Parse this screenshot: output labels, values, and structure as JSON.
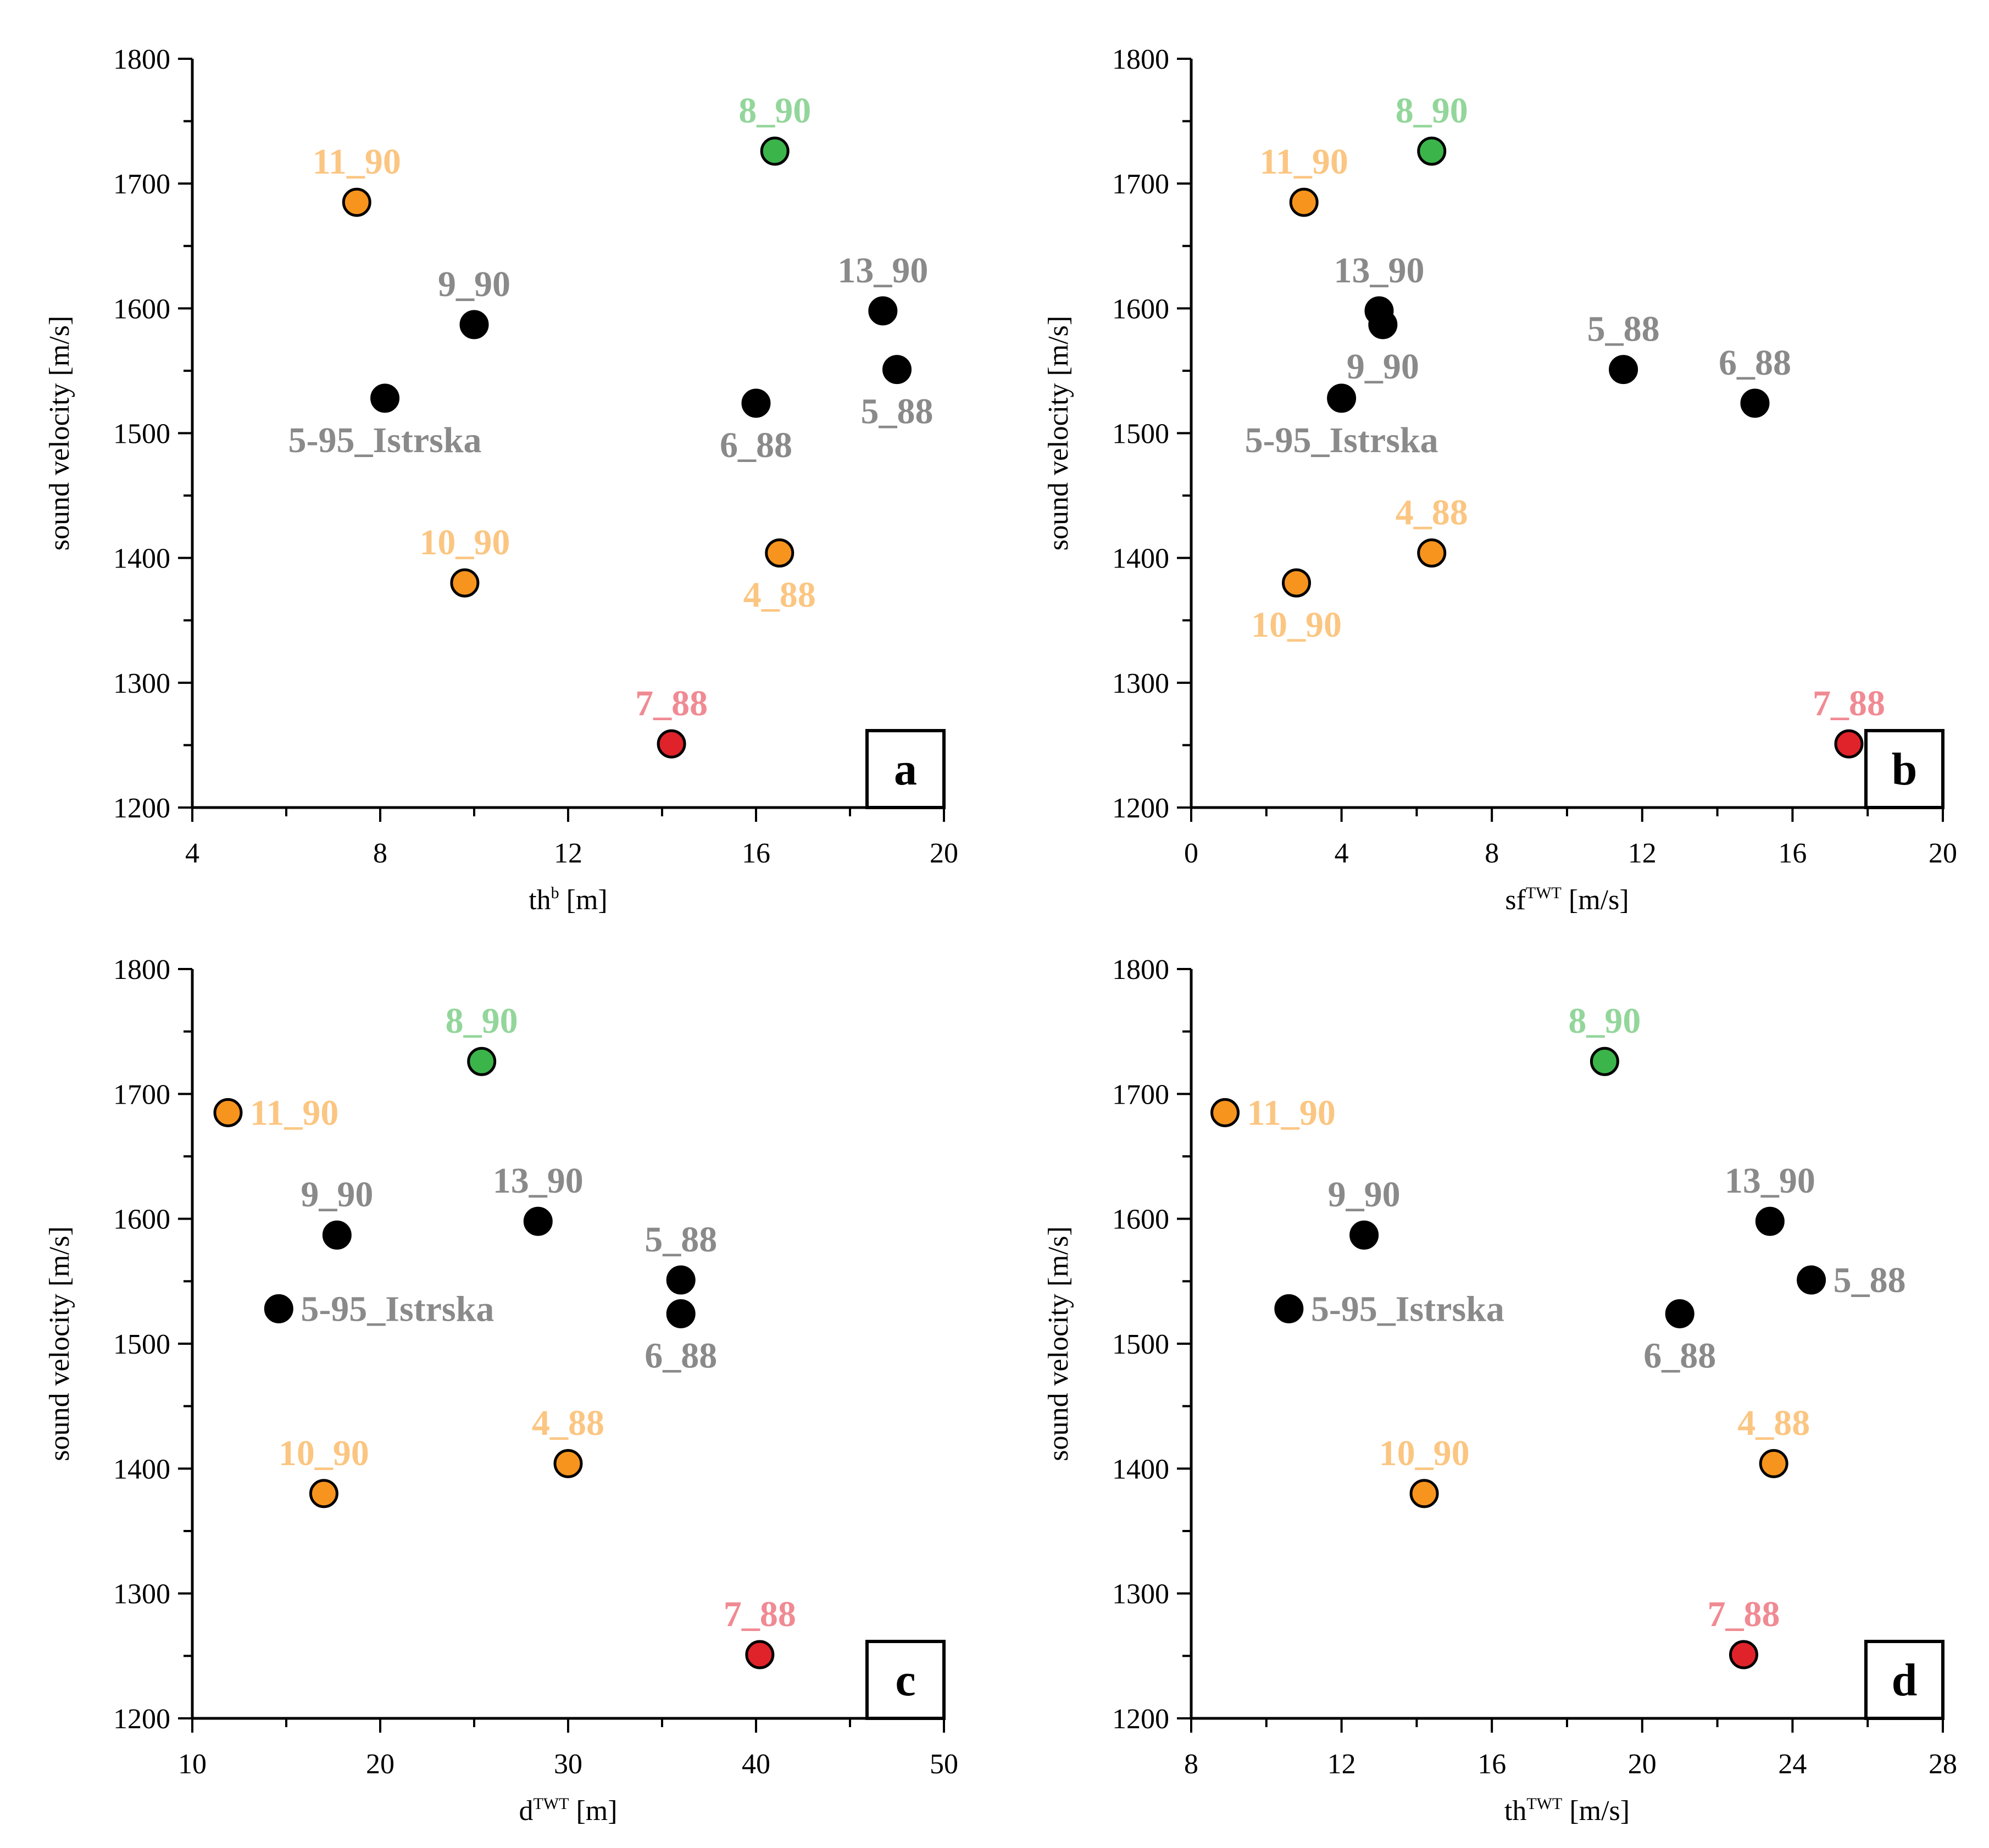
{
  "colors": {
    "black_marker": "#000000",
    "black_label": "#8a8a8a",
    "orange_marker": "#f7941d",
    "orange_label": "#fbc682",
    "green_marker": "#3bb54a",
    "green_label": "#93d69b",
    "red_marker": "#e0232a",
    "red_label": "#f08a93"
  },
  "chart_data": [
    {
      "type": "scatter",
      "panel": "a",
      "xlabel": "th",
      "xlabel_sup": "b",
      "xlabel_unit": " [m]",
      "ylabel": "sound velocity [m/s]",
      "xlim": [
        4,
        20
      ],
      "ylim": [
        1200,
        1800
      ],
      "xticks": [
        "4",
        "8",
        "12",
        "16",
        "20"
      ],
      "x_minor_step": 2,
      "yticks": [
        "1200",
        "1300",
        "1400",
        "1500",
        "1600",
        "1700",
        "1800"
      ],
      "y_minor_step": 50,
      "points": [
        {
          "label": "8_90",
          "x": 16.4,
          "y": 1726,
          "group": "green",
          "label_pos": "above"
        },
        {
          "label": "11_90",
          "x": 7.5,
          "y": 1685,
          "group": "orange",
          "label_pos": "above"
        },
        {
          "label": "9_90",
          "x": 10.0,
          "y": 1587,
          "group": "black",
          "label_pos": "above"
        },
        {
          "label": "13_90",
          "x": 18.7,
          "y": 1598,
          "group": "black",
          "label_pos": "above"
        },
        {
          "label": "5_88",
          "x": 19.0,
          "y": 1551,
          "group": "black",
          "label_pos": "below"
        },
        {
          "label": "5-95_Istrska",
          "x": 8.1,
          "y": 1528,
          "group": "black",
          "label_pos": "below"
        },
        {
          "label": "6_88",
          "x": 16.0,
          "y": 1524,
          "group": "black",
          "label_pos": "below"
        },
        {
          "label": "10_90",
          "x": 9.8,
          "y": 1380,
          "group": "orange",
          "label_pos": "above"
        },
        {
          "label": "4_88",
          "x": 16.5,
          "y": 1404,
          "group": "orange",
          "label_pos": "below"
        },
        {
          "label": "7_88",
          "x": 14.2,
          "y": 1251,
          "group": "red",
          "label_pos": "above"
        }
      ]
    },
    {
      "type": "scatter",
      "panel": "b",
      "xlabel": "sf",
      "xlabel_sup": "TWT",
      "xlabel_unit": " [m/s]",
      "ylabel": "sound velocity [m/s]",
      "xlim": [
        0,
        20
      ],
      "ylim": [
        1200,
        1800
      ],
      "xticks": [
        "0",
        "4",
        "8",
        "12",
        "16",
        "20"
      ],
      "x_minor_step": 2,
      "yticks": [
        "1200",
        "1300",
        "1400",
        "1500",
        "1600",
        "1700",
        "1800"
      ],
      "y_minor_step": 50,
      "points": [
        {
          "label": "8_90",
          "x": 6.4,
          "y": 1726,
          "group": "green",
          "label_pos": "above"
        },
        {
          "label": "11_90",
          "x": 3.0,
          "y": 1685,
          "group": "orange",
          "label_pos": "above"
        },
        {
          "label": "13_90",
          "x": 5.0,
          "y": 1598,
          "group": "black",
          "label_pos": "above"
        },
        {
          "label": "9_90",
          "x": 5.1,
          "y": 1587,
          "group": "black",
          "label_pos": "below"
        },
        {
          "label": "5_88",
          "x": 11.5,
          "y": 1551,
          "group": "black",
          "label_pos": "above"
        },
        {
          "label": "6_88",
          "x": 15.0,
          "y": 1524,
          "group": "black",
          "label_pos": "above"
        },
        {
          "label": "5-95_Istrska",
          "x": 4.0,
          "y": 1528,
          "group": "black",
          "label_pos": "below"
        },
        {
          "label": "4_88",
          "x": 6.4,
          "y": 1404,
          "group": "orange",
          "label_pos": "above"
        },
        {
          "label": "10_90",
          "x": 2.8,
          "y": 1380,
          "group": "orange",
          "label_pos": "below"
        },
        {
          "label": "7_88",
          "x": 17.5,
          "y": 1251,
          "group": "red",
          "label_pos": "above"
        }
      ]
    },
    {
      "type": "scatter",
      "panel": "c",
      "xlabel": "d",
      "xlabel_sup": "TWT",
      "xlabel_unit": " [m]",
      "ylabel": "sound velocity [m/s]",
      "xlim": [
        10,
        50
      ],
      "ylim": [
        1200,
        1800
      ],
      "xticks": [
        "10",
        "20",
        "30",
        "40",
        "50"
      ],
      "x_minor_step": 5,
      "yticks": [
        "1200",
        "1300",
        "1400",
        "1500",
        "1600",
        "1700",
        "1800"
      ],
      "y_minor_step": 50,
      "points": [
        {
          "label": "8_90",
          "x": 25.4,
          "y": 1726,
          "group": "green",
          "label_pos": "above"
        },
        {
          "label": "11_90",
          "x": 11.9,
          "y": 1685,
          "group": "orange",
          "label_pos": "right"
        },
        {
          "label": "9_90",
          "x": 17.7,
          "y": 1587,
          "group": "black",
          "label_pos": "above"
        },
        {
          "label": "13_90",
          "x": 28.4,
          "y": 1598,
          "group": "black",
          "label_pos": "above"
        },
        {
          "label": "5_88",
          "x": 36.0,
          "y": 1551,
          "group": "black",
          "label_pos": "above"
        },
        {
          "label": "6_88",
          "x": 36.0,
          "y": 1524,
          "group": "black",
          "label_pos": "below"
        },
        {
          "label": "5-95_Istrska",
          "x": 14.6,
          "y": 1528,
          "group": "black",
          "label_pos": "right"
        },
        {
          "label": "10_90",
          "x": 17.0,
          "y": 1380,
          "group": "orange",
          "label_pos": "above"
        },
        {
          "label": "4_88",
          "x": 30.0,
          "y": 1404,
          "group": "orange",
          "label_pos": "above"
        },
        {
          "label": "7_88",
          "x": 40.2,
          "y": 1251,
          "group": "red",
          "label_pos": "above"
        }
      ]
    },
    {
      "type": "scatter",
      "panel": "d",
      "xlabel": "th",
      "xlabel_sup": "TWT",
      "xlabel_unit": " [m/s]",
      "ylabel": "sound velocity [m/s]",
      "xlim": [
        8,
        28
      ],
      "ylim": [
        1200,
        1800
      ],
      "xticks": [
        "8",
        "12",
        "16",
        "20",
        "24",
        "28"
      ],
      "x_minor_step": 2,
      "yticks": [
        "1200",
        "1300",
        "1400",
        "1500",
        "1600",
        "1700",
        "1800"
      ],
      "y_minor_step": 50,
      "points": [
        {
          "label": "8_90",
          "x": 19.0,
          "y": 1726,
          "group": "green",
          "label_pos": "above"
        },
        {
          "label": "11_90",
          "x": 8.9,
          "y": 1685,
          "group": "orange",
          "label_pos": "right"
        },
        {
          "label": "9_90",
          "x": 12.6,
          "y": 1587,
          "group": "black",
          "label_pos": "above"
        },
        {
          "label": "13_90",
          "x": 23.4,
          "y": 1598,
          "group": "black",
          "label_pos": "above"
        },
        {
          "label": "5_88",
          "x": 24.5,
          "y": 1551,
          "group": "black",
          "label_pos": "right"
        },
        {
          "label": "6_88",
          "x": 21.0,
          "y": 1524,
          "group": "black",
          "label_pos": "below"
        },
        {
          "label": "5-95_Istrska",
          "x": 10.6,
          "y": 1528,
          "group": "black",
          "label_pos": "right"
        },
        {
          "label": "10_90",
          "x": 14.2,
          "y": 1380,
          "group": "orange",
          "label_pos": "above"
        },
        {
          "label": "4_88",
          "x": 23.5,
          "y": 1404,
          "group": "orange",
          "label_pos": "above"
        },
        {
          "label": "7_88",
          "x": 22.7,
          "y": 1251,
          "group": "red",
          "label_pos": "above"
        }
      ]
    }
  ]
}
